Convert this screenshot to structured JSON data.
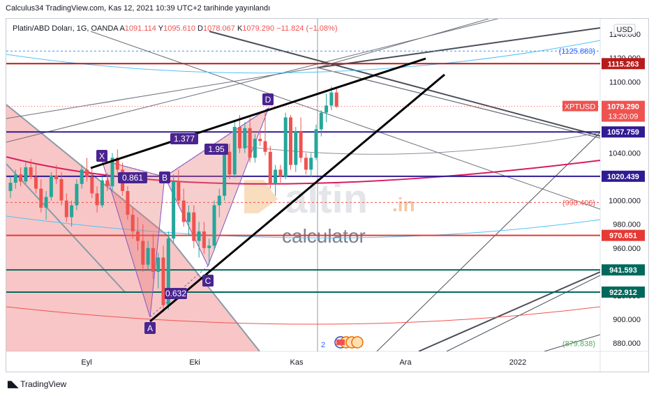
{
  "publication": {
    "text": "Calculus34 TradingView.com, Kas 12, 2021 10:39 UTC+2 tarihinde yayınlandı"
  },
  "legend": {
    "symbol": "Platin/ABD Doları, 1G, OANDA",
    "open_label": "A",
    "open": "1091.114",
    "high_label": "Y",
    "high": "1095.610",
    "low_label": "D",
    "low": "1078.067",
    "close_label": "K",
    "close": "1079.290",
    "change": "−11.824 (−1.08%)"
  },
  "currency": "USD",
  "footer": {
    "brand": "TradingView"
  },
  "watermark": {
    "brand": "altin",
    "suffix": ".in",
    "sub": "calculator"
  },
  "events_count": "2",
  "chart_data": {
    "type": "candlestick",
    "x_axis_labels": [
      "Eyl",
      "Eki",
      "Kas",
      "Ara",
      "2022"
    ],
    "y_ticks": [
      880,
      900,
      920,
      940,
      960,
      980,
      1000,
      1020,
      1040,
      1060,
      1080,
      1100,
      1120,
      1140
    ],
    "y_tick_labels": [
      "880.000",
      "900.000",
      "920.000",
      "940.000",
      "960.000",
      "980.000",
      "1000.000",
      "1020.000",
      "1040.000",
      "1060.000",
      "1080.000",
      "1100.000",
      "1120.000",
      "1140.000"
    ],
    "ylim": [
      873,
      1153
    ],
    "candles": [
      [
        1008,
        1020,
        1002,
        1015
      ],
      [
        1015,
        1026,
        1010,
        1022
      ],
      [
        1022,
        1028,
        1012,
        1016
      ],
      [
        1016,
        1032,
        1014,
        1028
      ],
      [
        1028,
        1035,
        1018,
        1020
      ],
      [
        1020,
        1030,
        1006,
        1010
      ],
      [
        1010,
        1018,
        990,
        994
      ],
      [
        994,
        1008,
        984,
        1003
      ],
      [
        1003,
        1024,
        1000,
        1021
      ],
      [
        1021,
        1030,
        1014,
        1018
      ],
      [
        1018,
        1024,
        996,
        1000
      ],
      [
        1000,
        1006,
        982,
        986
      ],
      [
        986,
        1000,
        978,
        996
      ],
      [
        996,
        1018,
        992,
        1014
      ],
      [
        1014,
        1030,
        1010,
        1026
      ],
      [
        1026,
        1036,
        1016,
        1020
      ],
      [
        1020,
        1028,
        1002,
        1006
      ],
      [
        1006,
        1012,
        990,
        996
      ],
      [
        996,
        1020,
        994,
        1017
      ],
      [
        1017,
        1023,
        1008,
        1012
      ],
      [
        1012,
        1040,
        1008,
        1036
      ],
      [
        1036,
        1043,
        1022,
        1026
      ],
      [
        1026,
        1032,
        1004,
        1008
      ],
      [
        1008,
        1012,
        984,
        988
      ],
      [
        988,
        994,
        968,
        974
      ],
      [
        974,
        986,
        958,
        966
      ],
      [
        966,
        980,
        940,
        946
      ],
      [
        946,
        966,
        942,
        960
      ],
      [
        960,
        972,
        934,
        940
      ],
      [
        940,
        956,
        926,
        952
      ],
      [
        952,
        962,
        906,
        912
      ],
      [
        912,
        974,
        908,
        968
      ],
      [
        968,
        1022,
        964,
        1016
      ],
      [
        1016,
        1026,
        996,
        1000
      ],
      [
        1000,
        1010,
        978,
        982
      ],
      [
        982,
        996,
        970,
        990
      ],
      [
        990,
        996,
        960,
        966
      ],
      [
        966,
        982,
        952,
        974
      ],
      [
        974,
        982,
        955,
        960
      ],
      [
        960,
        968,
        946,
        962
      ],
      [
        962,
        1000,
        958,
        996
      ],
      [
        996,
        1010,
        986,
        1004
      ],
      [
        1004,
        1046,
        1000,
        1041
      ],
      [
        1041,
        1048,
        1018,
        1022
      ],
      [
        1022,
        1068,
        1019,
        1062
      ],
      [
        1062,
        1072,
        1040,
        1044
      ],
      [
        1044,
        1066,
        1040,
        1061
      ],
      [
        1061,
        1070,
        1032,
        1036
      ],
      [
        1036,
        1056,
        1032,
        1052
      ],
      [
        1052,
        1058,
        1046,
        1050
      ],
      [
        1050,
        1074,
        1038,
        1041
      ],
      [
        1041,
        1046,
        1010,
        1014
      ],
      [
        1014,
        1030,
        1004,
        1026
      ],
      [
        1026,
        1030,
        1015,
        1020
      ],
      [
        1020,
        1074,
        1018,
        1070
      ],
      [
        1070,
        1072,
        1026,
        1030
      ],
      [
        1030,
        1062,
        1024,
        1058
      ],
      [
        1058,
        1070,
        1032,
        1036
      ],
      [
        1036,
        1040,
        1022,
        1026
      ],
      [
        1026,
        1040,
        1020,
        1036
      ],
      [
        1036,
        1064,
        1034,
        1060
      ],
      [
        1060,
        1076,
        1054,
        1074
      ],
      [
        1074,
        1090,
        1066,
        1080
      ],
      [
        1080,
        1096,
        1076,
        1091
      ],
      [
        1091,
        1096,
        1078,
        1079
      ]
    ],
    "price_labels": [
      {
        "value": 1125.883,
        "text": "(1125.883)",
        "style": "paren",
        "color": "#2962ff"
      },
      {
        "value": 1115.263,
        "text": "1115.263",
        "style": "box",
        "color": "#b71c1c"
      },
      {
        "value": 1079.29,
        "text": "1079.290",
        "style": "box",
        "color": "#ef5350",
        "sub": "13:20:09",
        "tag": "XPTUSD"
      },
      {
        "value": 1057.759,
        "text": "1057.759",
        "style": "box",
        "color": "#311b92"
      },
      {
        "value": 1020.439,
        "text": "1020.439",
        "style": "box",
        "color": "#311b92"
      },
      {
        "value": 998.406,
        "text": "(998.406)",
        "style": "paren",
        "color": "#ef5350"
      },
      {
        "value": 970.651,
        "text": "970.651",
        "style": "box",
        "color": "#e53935"
      },
      {
        "value": 941.593,
        "text": "941.593",
        "style": "box",
        "color": "#00695c"
      },
      {
        "value": 922.912,
        "text": "922.912",
        "style": "box",
        "color": "#00695c"
      },
      {
        "value": 879.838,
        "text": "(879.838)",
        "style": "paren",
        "color": "#4caf50"
      }
    ],
    "horizontal_levels": [
      {
        "value": 1115.263,
        "color": "#b71c1c",
        "dash": false,
        "width": 2
      },
      {
        "value": 1057.759,
        "color": "#311b92",
        "dash": false,
        "width": 2
      },
      {
        "value": 1020.439,
        "color": "#311b92",
        "dash": false,
        "width": 2
      },
      {
        "value": 970.651,
        "color": "#e53935",
        "dash": false,
        "width": 2
      },
      {
        "value": 941.593,
        "color": "#00695c",
        "dash": false,
        "width": 2
      },
      {
        "value": 922.912,
        "color": "#00695c",
        "dash": false,
        "width": 2
      },
      {
        "value": 1125.883,
        "color": "#4a90e2",
        "dash": true,
        "width": 1
      },
      {
        "value": 998.406,
        "color": "#ef5350",
        "dash": true,
        "width": 1
      }
    ],
    "pattern_points": [
      {
        "label": "X",
        "value": 1034
      },
      {
        "label": "A",
        "value": 902
      },
      {
        "label": "B",
        "value": 1020
      },
      {
        "label": "C",
        "value": 945
      },
      {
        "label": "D",
        "value": 1078
      }
    ],
    "pattern_ratios": [
      {
        "text": "0.861"
      },
      {
        "text": "0.632"
      },
      {
        "text": "1.95"
      },
      {
        "text": "1.377"
      }
    ]
  }
}
